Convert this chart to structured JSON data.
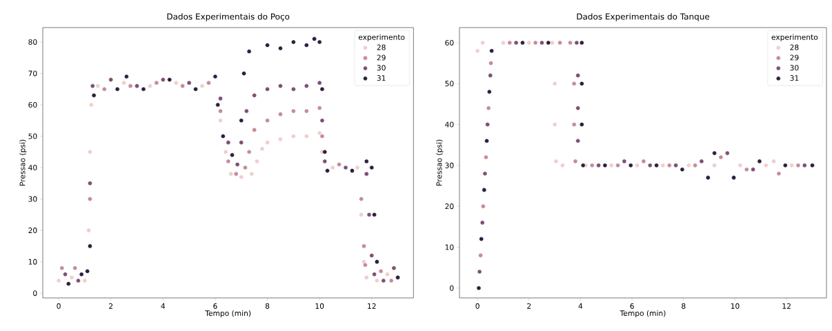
{
  "chart_data": [
    {
      "type": "scatter",
      "title": "Dados Experimentais do Poço",
      "xlabel": "Tempo (min)",
      "ylabel": "Pressao (psi)",
      "legend_title": "experimento",
      "legend": "top right",
      "marker": "circle",
      "xlim": [
        -0.61,
        13.6
      ],
      "ylim": [
        -1.5,
        84.6
      ],
      "xticks": [
        0,
        2,
        4,
        6,
        8,
        10,
        12
      ],
      "yticks": [
        0,
        10,
        20,
        30,
        40,
        50,
        60,
        70,
        80
      ],
      "series": [
        {
          "name": "28",
          "color": "#efcfca",
          "x": [
            0,
            0.5,
            1.0,
            1.15,
            1.2,
            1.25,
            1.5,
            2.5,
            3.5,
            4.5,
            5.5,
            6.2,
            6.4,
            6.6,
            7,
            7.4,
            7.6,
            7.8,
            8,
            8.5,
            9,
            9.5,
            10,
            10.1,
            10.5,
            11.45,
            11.6,
            11.7,
            11.8,
            12.2,
            12.6
          ],
          "values": [
            4,
            5,
            4,
            20,
            45,
            60,
            66,
            67,
            66,
            67,
            66,
            55,
            45,
            38,
            37,
            38,
            42,
            46,
            48,
            49,
            50,
            50,
            51,
            45,
            40,
            40,
            25,
            10,
            5,
            4,
            6
          ]
        },
        {
          "name": "29",
          "color": "#c78a9b",
          "x": [
            0.125,
            0.625,
            1.2,
            1.75,
            2.75,
            3.75,
            4.75,
            5.75,
            6.2,
            6.5,
            6.8,
            7.15,
            7.3,
            7.5,
            8,
            8.5,
            9,
            9.5,
            10,
            10.1,
            10.75,
            11.6,
            11.7,
            11.75,
            12.35,
            12.75
          ],
          "values": [
            8,
            8,
            30,
            65,
            66,
            67,
            66,
            67,
            58,
            42,
            38,
            40,
            45,
            52,
            55,
            57,
            58,
            58,
            59,
            50,
            41,
            30,
            15,
            9,
            7,
            4
          ]
        },
        {
          "name": "30",
          "color": "#7d4f74",
          "x": [
            0.25,
            0.75,
            1.2,
            1.3,
            2,
            3,
            4,
            5,
            6.2,
            6.5,
            6.85,
            7,
            7.2,
            7.5,
            8,
            8.5,
            9,
            9.5,
            10,
            10.1,
            10.2,
            11.0,
            11.8,
            11.9,
            12,
            12.1,
            12.45,
            12.85
          ],
          "values": [
            6,
            4,
            35,
            66,
            68,
            66,
            68,
            67,
            62,
            48,
            41,
            48,
            58,
            63,
            65,
            66,
            65,
            66,
            67,
            55,
            42,
            40,
            38,
            25,
            12,
            6,
            4,
            8
          ]
        },
        {
          "name": "31",
          "color": "#2d1e3e",
          "x": [
            0.375,
            0.875,
            1.1,
            1.2,
            1.35,
            2.25,
            2.6,
            3.25,
            4.25,
            5.25,
            6,
            6.1,
            6.3,
            6.65,
            7,
            7.1,
            7.3,
            8,
            8.5,
            9,
            9.5,
            9.8,
            10,
            10.1,
            10.2,
            10.3,
            11.25,
            11.8,
            12,
            12.1,
            12.2,
            13
          ],
          "values": [
            3,
            6,
            7,
            15,
            63,
            65,
            69,
            65,
            68,
            65,
            69,
            60,
            50,
            44,
            55,
            70,
            77,
            79,
            78,
            80,
            79,
            81,
            80,
            65,
            45,
            39,
            39,
            42,
            40,
            25,
            10,
            5
          ]
        }
      ]
    },
    {
      "type": "scatter",
      "title": "Dados Experimentais do Tanque",
      "xlabel": "Tempo (min)",
      "ylabel": "Pressao (psi)",
      "legend_title": "experimento",
      "legend": "top right",
      "marker": "circle",
      "xlim": [
        -0.7,
        13.55
      ],
      "ylim": [
        -2.4,
        63.7
      ],
      "xticks": [
        0,
        2,
        4,
        6,
        8,
        10,
        12
      ],
      "yticks": [
        0,
        10,
        20,
        30,
        40,
        50,
        60
      ],
      "series": [
        {
          "name": "28",
          "color": "#efcfca",
          "x": [
            0,
            0.2,
            1,
            2,
            2.9,
            3,
            3,
            3.05,
            3.3,
            4.2,
            5.2,
            6.2,
            7.2,
            8.2,
            9.2,
            10.2,
            11.2,
            11.5,
            12.2
          ],
          "values": [
            58,
            60,
            60,
            60,
            60,
            50,
            40,
            31,
            30,
            30,
            30,
            30,
            30,
            30,
            30,
            30,
            30,
            31,
            30
          ]
        },
        {
          "name": "29",
          "color": "#c78a9b",
          "x": [
            0.12,
            0.22,
            0.33,
            0.43,
            0.52,
            1.25,
            2.25,
            3.2,
            3.6,
            3.75,
            3.75,
            3.8,
            4.45,
            5.45,
            6.45,
            7.45,
            8.45,
            9.45,
            10.45,
            11.7,
            12.45
          ],
          "values": [
            8,
            20,
            32,
            44,
            55,
            60,
            60,
            60,
            60,
            50,
            40,
            31,
            30,
            30,
            31,
            30,
            30,
            32,
            29,
            28,
            30
          ]
        },
        {
          "name": "30",
          "color": "#7d4f74",
          "x": [
            0.08,
            0.19,
            0.29,
            0.39,
            0.5,
            1.5,
            2.5,
            3.85,
            3.9,
            3.9,
            3.9,
            4.7,
            5.7,
            6.7,
            7.7,
            8.7,
            9.7,
            10.7,
            12.7
          ],
          "values": [
            4,
            16,
            28,
            40,
            52,
            60,
            60,
            60,
            52,
            44,
            36,
            30,
            31,
            30,
            30,
            31,
            33,
            29,
            30
          ]
        },
        {
          "name": "31",
          "color": "#2d1e3e",
          "x": [
            0.05,
            0.15,
            0.26,
            0.36,
            0.46,
            0.55,
            1.75,
            2.75,
            4.05,
            4.05,
            4.05,
            4.1,
            4.95,
            5.95,
            6.95,
            7.95,
            8.95,
            9.2,
            9.95,
            10.95,
            11.95,
            13
          ],
          "values": [
            0,
            12,
            24,
            36,
            48,
            58,
            60,
            60,
            60,
            50,
            40,
            30,
            30,
            30,
            30,
            29,
            27,
            33,
            27,
            31,
            30,
            30
          ]
        }
      ]
    }
  ]
}
